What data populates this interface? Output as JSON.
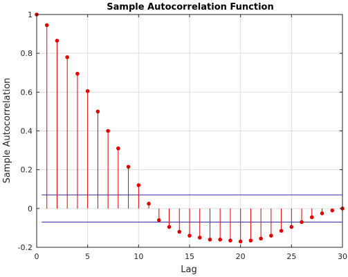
{
  "chart_data": {
    "type": "stem",
    "title": "Sample Autocorrelation Function",
    "xlabel": "Lag",
    "ylabel": "Sample Autocorrelation",
    "xlim": [
      0,
      30
    ],
    "ylim": [
      -0.2,
      1
    ],
    "xticks": [
      0,
      5,
      10,
      15,
      20,
      25,
      30
    ],
    "yticks": [
      -0.2,
      0,
      0.2,
      0.4,
      0.6,
      0.8,
      1
    ],
    "xtick_labels": [
      "0",
      "5",
      "10",
      "15",
      "20",
      "25",
      "30"
    ],
    "ytick_labels": [
      "-0.2",
      "0",
      "0.2",
      "0.4",
      "0.6",
      "0.8",
      "1"
    ],
    "grid": true,
    "confidence_bounds": [
      0.07,
      -0.07
    ],
    "series": [
      {
        "lags": [
          0,
          1,
          2,
          3,
          4,
          5,
          6,
          7,
          8,
          9,
          10,
          11,
          12,
          13,
          14,
          15,
          16,
          17,
          18,
          19,
          20,
          21,
          22,
          23,
          24,
          25,
          26,
          27,
          28,
          29,
          30
        ],
        "values": [
          1.0,
          0.945,
          0.865,
          0.78,
          0.695,
          0.605,
          0.5,
          0.4,
          0.31,
          0.215,
          0.12,
          0.025,
          -0.06,
          -0.095,
          -0.12,
          -0.14,
          -0.15,
          -0.16,
          -0.16,
          -0.165,
          -0.17,
          -0.165,
          -0.155,
          -0.14,
          -0.115,
          -0.095,
          -0.07,
          -0.045,
          -0.025,
          -0.01,
          0.0
        ]
      }
    ],
    "colors": {
      "stem": "#d90000",
      "marker": "#e00000",
      "bounds": "#2a2aa8",
      "grid": "#dedede",
      "axis": "#262626"
    }
  }
}
